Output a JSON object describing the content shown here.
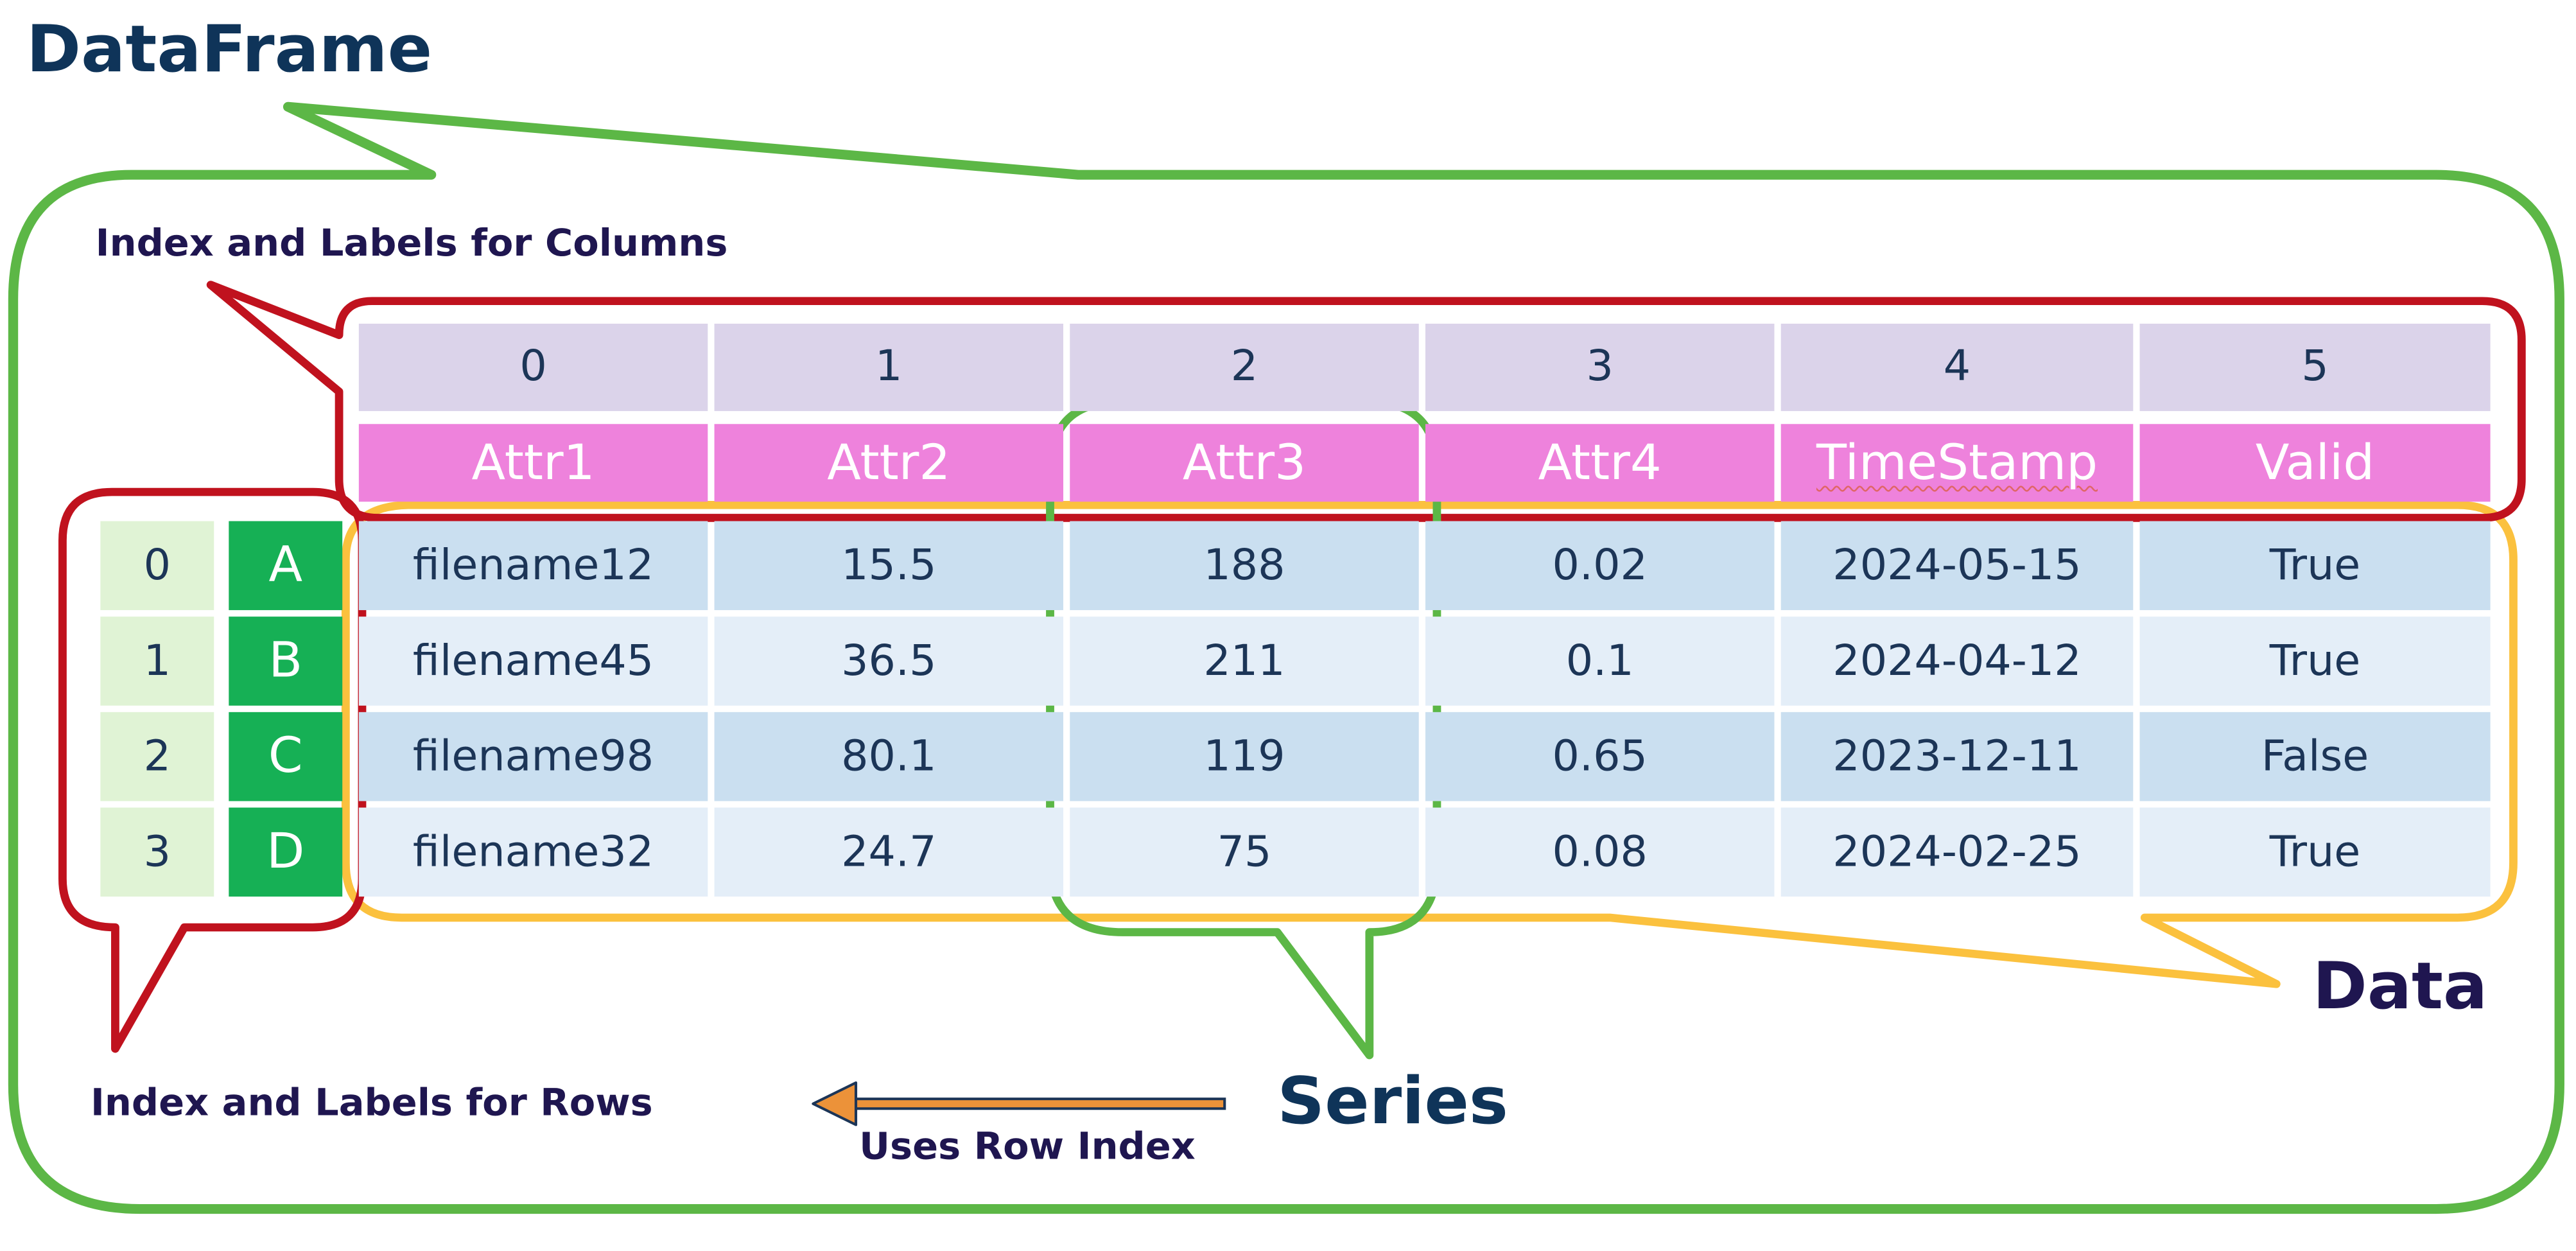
{
  "labels": {
    "dataframe": "DataFrame",
    "columns_index": "Index and Labels for Columns",
    "rows_index": "Index and Labels for Rows",
    "series": "Series",
    "data": "Data",
    "uses_row_index": "Uses Row Index"
  },
  "column_index": [
    "0",
    "1",
    "2",
    "3",
    "4",
    "5"
  ],
  "column_labels": [
    "Attr1",
    "Attr2",
    "Attr3",
    "Attr4",
    "TimeStamp",
    "Valid"
  ],
  "row_index": [
    "0",
    "1",
    "2",
    "3"
  ],
  "row_labels": [
    "A",
    "B",
    "C",
    "D"
  ],
  "rows": [
    [
      "filename12",
      "15.5",
      "188",
      "0.02",
      "2024-05-15",
      "True"
    ],
    [
      "filename45",
      "36.5",
      "211",
      "0.1",
      "2024-04-12",
      "True"
    ],
    [
      "filename98",
      "80.1",
      "119",
      "0.65",
      "2023-12-11",
      "False"
    ],
    [
      "filename32",
      "24.7",
      "75",
      "0.08",
      "2024-02-25",
      "True"
    ]
  ],
  "colors": {
    "dataframe_outline": "#5cb746",
    "column_index_outline": "#c0121e",
    "data_outline": "#fbc13e",
    "series_outline": "#5cb746",
    "arrow_fill": "#ec9239",
    "arrow_line": "#1c3557",
    "title_text": "#0f3459",
    "caption_text": "#1f1650"
  }
}
